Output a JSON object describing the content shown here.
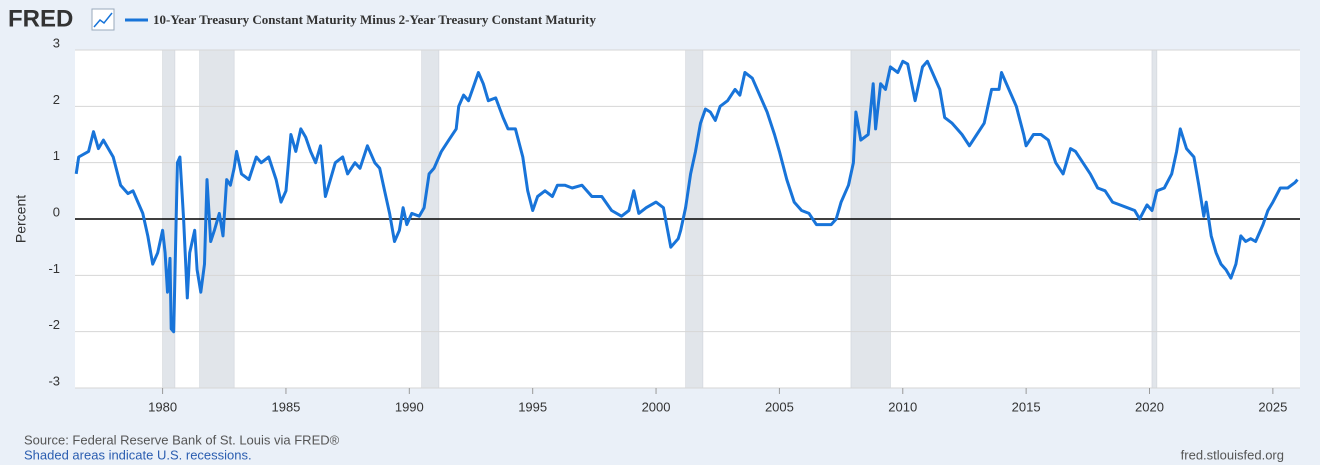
{
  "logo": "FRED",
  "chart_data": {
    "type": "line",
    "ylabel": "Percent",
    "source": "Source: Federal Reserve Bank of St. Louis via FRED®",
    "note": "Shaded areas indicate U.S. recessions.",
    "site": "fred.stlouisfed.org",
    "xlim": [
      1976.45,
      2026.1
    ],
    "ylim": [
      -3,
      3
    ],
    "xticks": [
      1980,
      1985,
      1990,
      1995,
      2000,
      2005,
      2010,
      2015,
      2020,
      2025
    ],
    "yticks": [
      3,
      2,
      1,
      0,
      -1,
      -2,
      -3
    ],
    "grid": true,
    "zero_line": true,
    "recessions": [
      [
        1980.0,
        1980.5
      ],
      [
        1981.5,
        1982.9
      ],
      [
        1990.5,
        1991.2
      ],
      [
        2001.2,
        2001.9
      ],
      [
        2007.9,
        2009.5
      ],
      [
        2020.1,
        2020.3
      ]
    ],
    "recession_color": "#e1e5ea",
    "x": [
      1976.5,
      1976.6,
      1977,
      1977.2,
      1977.4,
      1977.6,
      1978,
      1978.3,
      1978.6,
      1978.8,
      1979,
      1979.2,
      1979.4,
      1979.6,
      1979.8,
      1980,
      1980.1,
      1980.2,
      1980.3,
      1980.35,
      1980.45,
      1980.6,
      1980.7,
      1980.85,
      1981,
      1981.1,
      1981.3,
      1981.4,
      1981.55,
      1981.7,
      1981.8,
      1981.95,
      1982.1,
      1982.3,
      1982.45,
      1982.6,
      1982.75,
      1982.9,
      1983,
      1983.2,
      1983.5,
      1983.8,
      1984,
      1984.3,
      1984.6,
      1984.8,
      1985,
      1985.2,
      1985.4,
      1985.6,
      1985.8,
      1986,
      1986.2,
      1986.4,
      1986.6,
      1986.8,
      1987,
      1987.3,
      1987.5,
      1987.8,
      1988,
      1988.3,
      1988.6,
      1988.8,
      1989,
      1989.2,
      1989.4,
      1989.6,
      1989.75,
      1989.9,
      1990.1,
      1990.4,
      1990.6,
      1990.8,
      1991,
      1991.3,
      1991.6,
      1991.9,
      1992,
      1992.2,
      1992.4,
      1992.6,
      1992.8,
      1993,
      1993.2,
      1993.5,
      1993.8,
      1994,
      1994.3,
      1994.6,
      1994.8,
      1995,
      1995.2,
      1995.5,
      1995.8,
      1996,
      1996.3,
      1996.6,
      1997,
      1997.4,
      1997.8,
      1998.2,
      1998.6,
      1998.9,
      1999.1,
      1999.3,
      1999.6,
      2000,
      2000.3,
      2000.6,
      2000.9,
      2001,
      2001.2,
      2001.4,
      2001.6,
      2001.8,
      2002,
      2002.2,
      2002.4,
      2002.6,
      2002.9,
      2003.2,
      2003.4,
      2003.6,
      2003.9,
      2004.2,
      2004.5,
      2004.8,
      2005,
      2005.3,
      2005.6,
      2005.9,
      2006.2,
      2006.5,
      2006.8,
      2007.1,
      2007.3,
      2007.5,
      2007.8,
      2008,
      2008.1,
      2008.3,
      2008.6,
      2008.8,
      2008.9,
      2009.1,
      2009.3,
      2009.5,
      2009.8,
      2010,
      2010.2,
      2010.5,
      2010.8,
      2011,
      2011.2,
      2011.5,
      2011.7,
      2012,
      2012.4,
      2012.7,
      2013,
      2013.3,
      2013.6,
      2013.9,
      2014,
      2014.3,
      2014.6,
      2014.9,
      2015,
      2015.3,
      2015.6,
      2015.9,
      2016.2,
      2016.5,
      2016.8,
      2017,
      2017.3,
      2017.6,
      2017.9,
      2018.2,
      2018.5,
      2018.8,
      2019.1,
      2019.4,
      2019.6,
      2019.9,
      2020.1,
      2020.3,
      2020.6,
      2020.9,
      2021.1,
      2021.25,
      2021.5,
      2021.8,
      2022,
      2022.2,
      2022.3,
      2022.5,
      2022.7,
      2022.9,
      2023.1,
      2023.3,
      2023.5,
      2023.7,
      2023.9,
      2024.1,
      2024.3,
      2024.6,
      2024.8,
      2025,
      2025.3,
      2025.6,
      2025.9,
      2026
    ],
    "series": [
      {
        "name": "10-Year Treasury Constant Maturity Minus 2-Year Treasury Constant Maturity",
        "color": "#1874d9",
        "values": [
          0.8,
          1.1,
          1.2,
          1.55,
          1.25,
          1.4,
          1.1,
          0.6,
          0.45,
          0.5,
          0.3,
          0.1,
          -0.3,
          -0.8,
          -0.6,
          -0.2,
          -0.6,
          -1.3,
          -0.7,
          -1.95,
          -2.0,
          1.0,
          1.1,
          0.0,
          -1.4,
          -0.6,
          -0.2,
          -0.9,
          -1.3,
          -0.8,
          0.7,
          -0.4,
          -0.2,
          0.1,
          -0.3,
          0.7,
          0.6,
          0.9,
          1.2,
          0.8,
          0.7,
          1.1,
          1.0,
          1.1,
          0.7,
          0.3,
          0.5,
          1.5,
          1.2,
          1.6,
          1.45,
          1.2,
          1.0,
          1.3,
          0.4,
          0.7,
          1.0,
          1.1,
          0.8,
          1.0,
          0.9,
          1.3,
          1.0,
          0.9,
          0.5,
          0.1,
          -0.4,
          -0.2,
          0.2,
          -0.1,
          0.1,
          0.05,
          0.2,
          0.8,
          0.9,
          1.2,
          1.4,
          1.6,
          2.0,
          2.2,
          2.1,
          2.35,
          2.6,
          2.4,
          2.1,
          2.15,
          1.8,
          1.6,
          1.6,
          1.1,
          0.5,
          0.15,
          0.4,
          0.5,
          0.4,
          0.6,
          0.6,
          0.55,
          0.6,
          0.4,
          0.4,
          0.15,
          0.05,
          0.15,
          0.5,
          0.1,
          0.2,
          0.3,
          0.2,
          -0.5,
          -0.35,
          -0.2,
          0.2,
          0.8,
          1.2,
          1.7,
          1.95,
          1.9,
          1.75,
          2.0,
          2.1,
          2.3,
          2.2,
          2.6,
          2.5,
          2.2,
          1.9,
          1.5,
          1.2,
          0.7,
          0.3,
          0.15,
          0.1,
          -0.1,
          -0.1,
          -0.1,
          0.0,
          0.3,
          0.6,
          1.0,
          1.9,
          1.4,
          1.5,
          2.4,
          1.6,
          2.4,
          2.3,
          2.7,
          2.6,
          2.8,
          2.75,
          2.1,
          2.7,
          2.8,
          2.6,
          2.3,
          1.8,
          1.7,
          1.5,
          1.3,
          1.5,
          1.7,
          2.3,
          2.3,
          2.6,
          2.3,
          2.0,
          1.5,
          1.3,
          1.5,
          1.5,
          1.4,
          1.0,
          0.8,
          1.25,
          1.2,
          1.0,
          0.8,
          0.55,
          0.5,
          0.3,
          0.25,
          0.2,
          0.15,
          0.0,
          0.25,
          0.15,
          0.5,
          0.55,
          0.8,
          1.2,
          1.6,
          1.25,
          1.1,
          0.6,
          0.05,
          0.3,
          -0.3,
          -0.6,
          -0.8,
          -0.9,
          -1.05,
          -0.8,
          -0.3,
          -0.4,
          -0.35,
          -0.4,
          -0.1,
          0.15,
          0.3,
          0.55,
          0.55,
          0.65,
          0.7
        ]
      }
    ]
  }
}
